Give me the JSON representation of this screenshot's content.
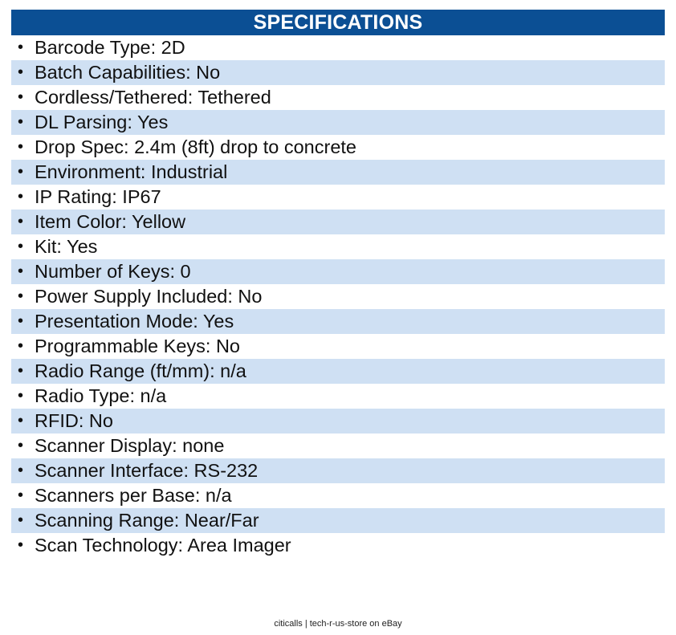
{
  "header": {
    "title": "SPECIFICATIONS"
  },
  "bullet_glyph": "•",
  "specs": [
    "Barcode Type: 2D",
    "Batch Capabilities: No",
    "Cordless/Tethered: Tethered",
    "DL Parsing: Yes",
    "Drop Spec: 2.4m (8ft) drop to concrete",
    "Environment: Industrial",
    "IP Rating: IP67",
    "Item Color: Yellow",
    "Kit: Yes",
    "Number of Keys: 0",
    "Power Supply Included: No",
    "Presentation Mode: Yes",
    "Programmable Keys: No",
    "Radio Range (ft/mm): n/a",
    "Radio Type: n/a",
    "RFID: No",
    "Scanner Display: none",
    "Scanner Interface: RS-232",
    "Scanners per Base: n/a",
    "Scanning Range: Near/Far",
    "Scan Technology: Area Imager"
  ],
  "footer": {
    "text": "citicalls | tech-r-us-store on eBay"
  },
  "colors": {
    "header_bg": "#0b4f94",
    "stripe_bg": "#cfe0f3"
  }
}
